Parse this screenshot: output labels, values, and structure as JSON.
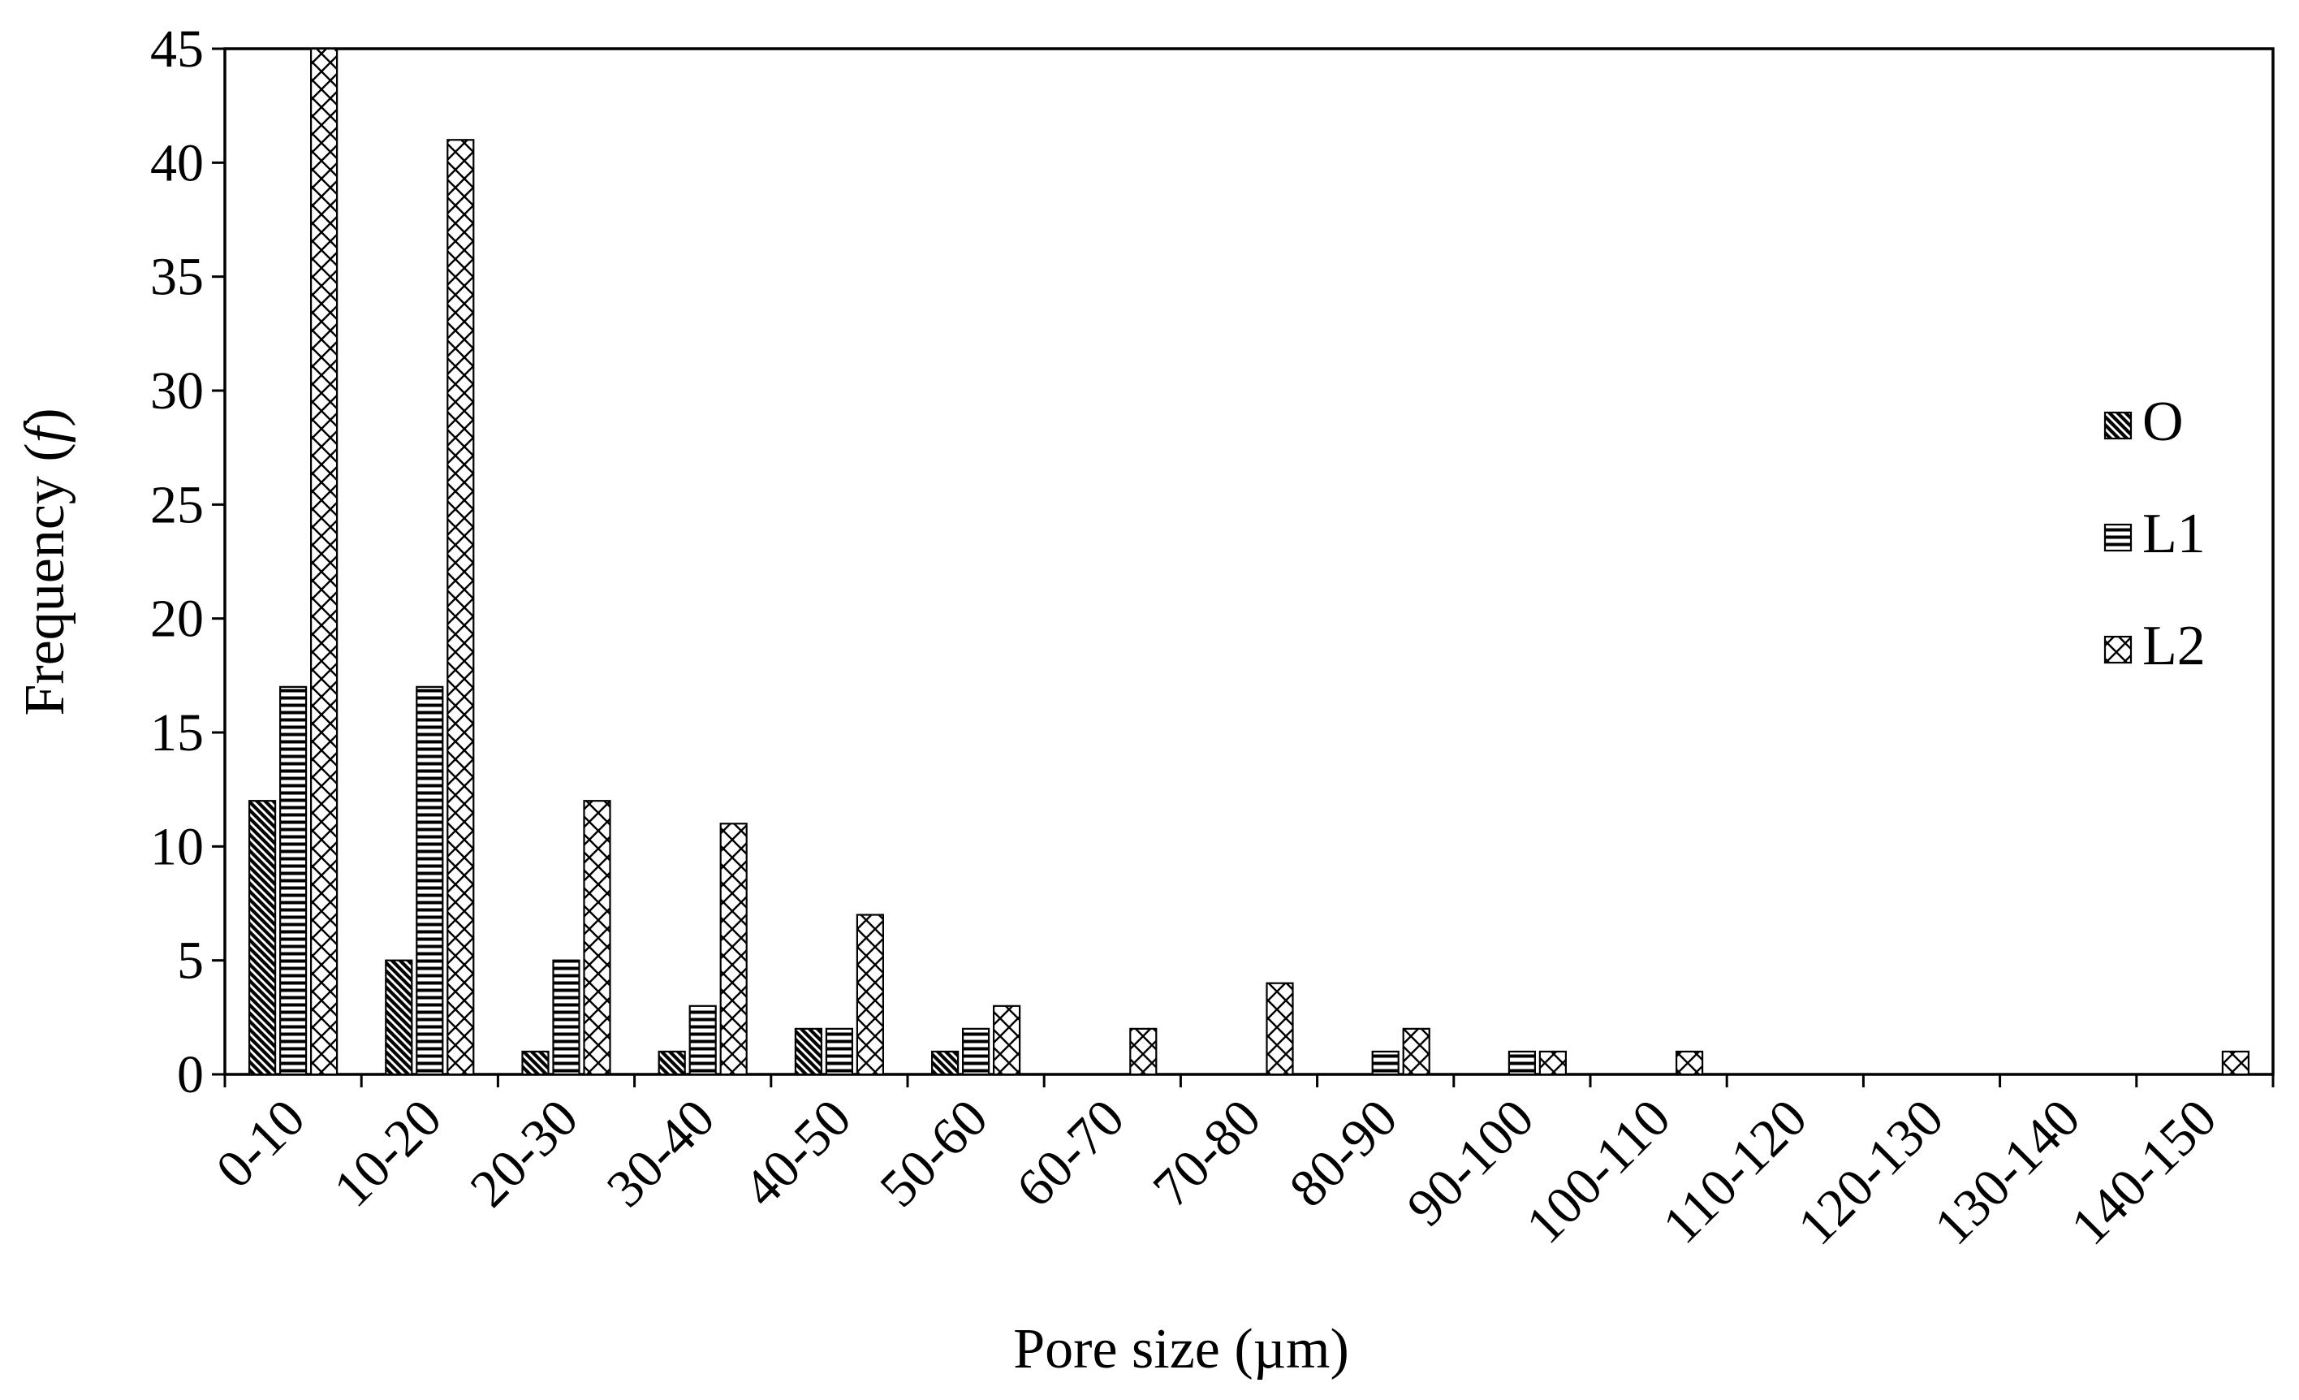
{
  "chart_data": {
    "type": "bar",
    "xlabel": "Pore size (µm)",
    "ylabel": {
      "prefix": "Frequency (",
      "symbol": "f",
      "suffix": ")"
    },
    "ylim": [
      0,
      45
    ],
    "yticks": [
      0,
      5,
      10,
      15,
      20,
      25,
      30,
      35,
      40,
      45
    ],
    "grid": false,
    "legend_position": "right",
    "categories": [
      "0-10",
      "10-20",
      "20-30",
      "30-40",
      "40-50",
      "50-60",
      "60-70",
      "70-80",
      "80-90",
      "90-100",
      "100-110",
      "110-120",
      "120-130",
      "130-140",
      "140-150"
    ],
    "series": [
      {
        "name": "O",
        "pattern": "diagonal",
        "values": [
          12,
          5,
          1,
          1,
          2,
          1,
          0,
          0,
          0,
          0,
          0,
          0,
          0,
          0,
          0
        ]
      },
      {
        "name": "L1",
        "pattern": "horizontal",
        "values": [
          17,
          17,
          5,
          3,
          2,
          2,
          0,
          0,
          1,
          1,
          0,
          0,
          0,
          0,
          0
        ]
      },
      {
        "name": "L2",
        "pattern": "crosshatch",
        "values": [
          45,
          41,
          12,
          11,
          7,
          3,
          2,
          4,
          2,
          1,
          1,
          0,
          0,
          0,
          1
        ]
      }
    ],
    "colors": {
      "ink": "#000000",
      "background": "#ffffff"
    }
  }
}
